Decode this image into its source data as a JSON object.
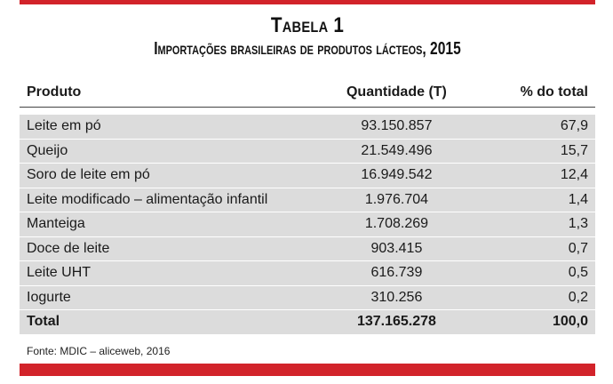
{
  "title": "Tabela 1",
  "subtitle": "Importações brasileiras de produtos lácteos, 2015",
  "headers": {
    "produto": "Produto",
    "quantidade": "Quantidade (T)",
    "percentual": "% do total"
  },
  "rows": [
    {
      "produto": "Leite em pó",
      "quantidade": "93.150.857",
      "percentual": "67,9"
    },
    {
      "produto": "Queijo",
      "quantidade": "21.549.496",
      "percentual": "15,7"
    },
    {
      "produto": "Soro de leite em pó",
      "quantidade": "16.949.542",
      "percentual": "12,4"
    },
    {
      "produto": "Leite modificado – alimentação infantil",
      "quantidade": "1.976.704",
      "percentual": "1,4"
    },
    {
      "produto": "Manteiga",
      "quantidade": "1.708.269",
      "percentual": "1,3"
    },
    {
      "produto": "Doce de leite",
      "quantidade": "903.415",
      "percentual": "0,7"
    },
    {
      "produto": "Leite UHT",
      "quantidade": "616.739",
      "percentual": "0,5"
    },
    {
      "produto": "Iogurte",
      "quantidade": "310.256",
      "percentual": "0,2"
    }
  ],
  "total": {
    "produto": "Total",
    "quantidade": "137.165.278",
    "percentual": "100,0"
  },
  "source": "Fonte: MDIC – aliceweb, 2016",
  "colors": {
    "accent_red": "#d2232a",
    "row_gray": "#dcdcdc"
  }
}
